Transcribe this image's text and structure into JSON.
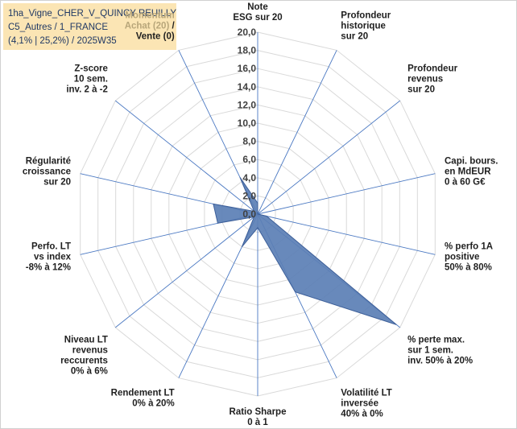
{
  "header": {
    "line1": "1ha_Vigne_CHER_V_QUINCY REUILLY",
    "line2": "C5_Autres / 1_FRANCE",
    "line3": "(4,1% | 25,2%) / 2025W35"
  },
  "colors": {
    "series_fill": "#5b7fb5",
    "series_stroke": "#3d5f99",
    "axis_line": "#4a78c2",
    "grid": "#d9d9d9",
    "label": "#1f1f1f",
    "title_bg": "#fbe5b4"
  },
  "chart_data": {
    "type": "radar",
    "ylim": [
      0,
      20
    ],
    "tick_values": [
      0,
      2,
      4,
      6,
      8,
      10,
      12,
      14,
      16,
      18,
      20
    ],
    "tick_labels": [
      "0,0",
      "2,0",
      "4,0",
      "6,0",
      "8,0",
      "10,0",
      "12,0",
      "14,0",
      "16,0",
      "18,0",
      "20,0"
    ],
    "axes": [
      {
        "lines": [
          "Note",
          "ESG sur 20"
        ]
      },
      {
        "lines": [
          "Profondeur",
          "historique",
          "sur 20"
        ]
      },
      {
        "lines": [
          "Profondeur",
          "revenus",
          "sur 20"
        ]
      },
      {
        "lines": [
          "Capi. bours.",
          "en MdEUR",
          "0 à 60 G€"
        ]
      },
      {
        "lines": [
          "% perfo 1A",
          "positive",
          "50% à 80%"
        ]
      },
      {
        "lines": [
          "% perte max.",
          "sur 1 sem.",
          "inv. 50% à 20%"
        ]
      },
      {
        "lines": [
          "Volatilité LT",
          "inversée",
          "40% à 0%"
        ]
      },
      {
        "lines": [
          "Ratio Sharpe",
          "0 à 1"
        ]
      },
      {
        "lines": [
          "Rendement LT",
          "0% à 20%"
        ]
      },
      {
        "lines": [
          "Niveau LT",
          "revenus",
          "reccurents",
          "0% à 6%"
        ]
      },
      {
        "lines": [
          "Perfo. LT",
          "vs index",
          "-8% à 12%"
        ]
      },
      {
        "lines": [
          "Régularité",
          "croissance",
          "sur 20"
        ]
      },
      {
        "lines": [
          "Z-score",
          "10 sem.",
          "inv. 2 à -2"
        ]
      },
      {
        "lines": [
          "Momentum",
          "Achat (20) /",
          "Vente (0)"
        ],
        "muted_prefix": [
          "Momentum",
          "Achat (20)"
        ]
      }
    ],
    "series": [
      {
        "values": [
          1.2,
          0,
          0,
          0,
          1.0,
          19.5,
          9.5,
          1.5,
          4.0,
          0.5,
          4.5,
          5.0,
          0.5,
          4.5
        ]
      }
    ]
  }
}
